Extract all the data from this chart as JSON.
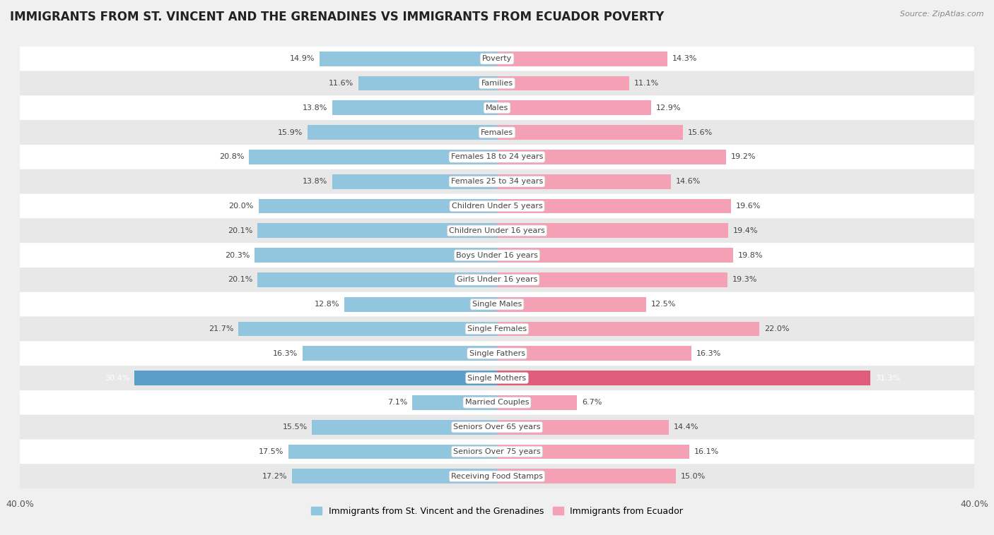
{
  "title": "IMMIGRANTS FROM ST. VINCENT AND THE GRENADINES VS IMMIGRANTS FROM ECUADOR POVERTY",
  "source": "Source: ZipAtlas.com",
  "categories": [
    "Poverty",
    "Families",
    "Males",
    "Females",
    "Females 18 to 24 years",
    "Females 25 to 34 years",
    "Children Under 5 years",
    "Children Under 16 years",
    "Boys Under 16 years",
    "Girls Under 16 years",
    "Single Males",
    "Single Females",
    "Single Fathers",
    "Single Mothers",
    "Married Couples",
    "Seniors Over 65 years",
    "Seniors Over 75 years",
    "Receiving Food Stamps"
  ],
  "left_values": [
    14.9,
    11.6,
    13.8,
    15.9,
    20.8,
    13.8,
    20.0,
    20.1,
    20.3,
    20.1,
    12.8,
    21.7,
    16.3,
    30.4,
    7.1,
    15.5,
    17.5,
    17.2
  ],
  "right_values": [
    14.3,
    11.1,
    12.9,
    15.6,
    19.2,
    14.6,
    19.6,
    19.4,
    19.8,
    19.3,
    12.5,
    22.0,
    16.3,
    31.3,
    6.7,
    14.4,
    16.1,
    15.0
  ],
  "left_color": "#92c5de",
  "right_color": "#f4a0b5",
  "highlight_left_color": "#5b9ec9",
  "highlight_right_color": "#e05c7a",
  "background_color": "#f0f0f0",
  "row_bg_white": "#ffffff",
  "row_bg_gray": "#e8e8e8",
  "xlim": 40.0,
  "legend_left": "Immigrants from St. Vincent and the Grenadines",
  "legend_right": "Immigrants from Ecuador",
  "title_fontsize": 12,
  "value_fontsize": 8,
  "category_fontsize": 8,
  "bar_height": 0.6,
  "highlight_idx": 13
}
